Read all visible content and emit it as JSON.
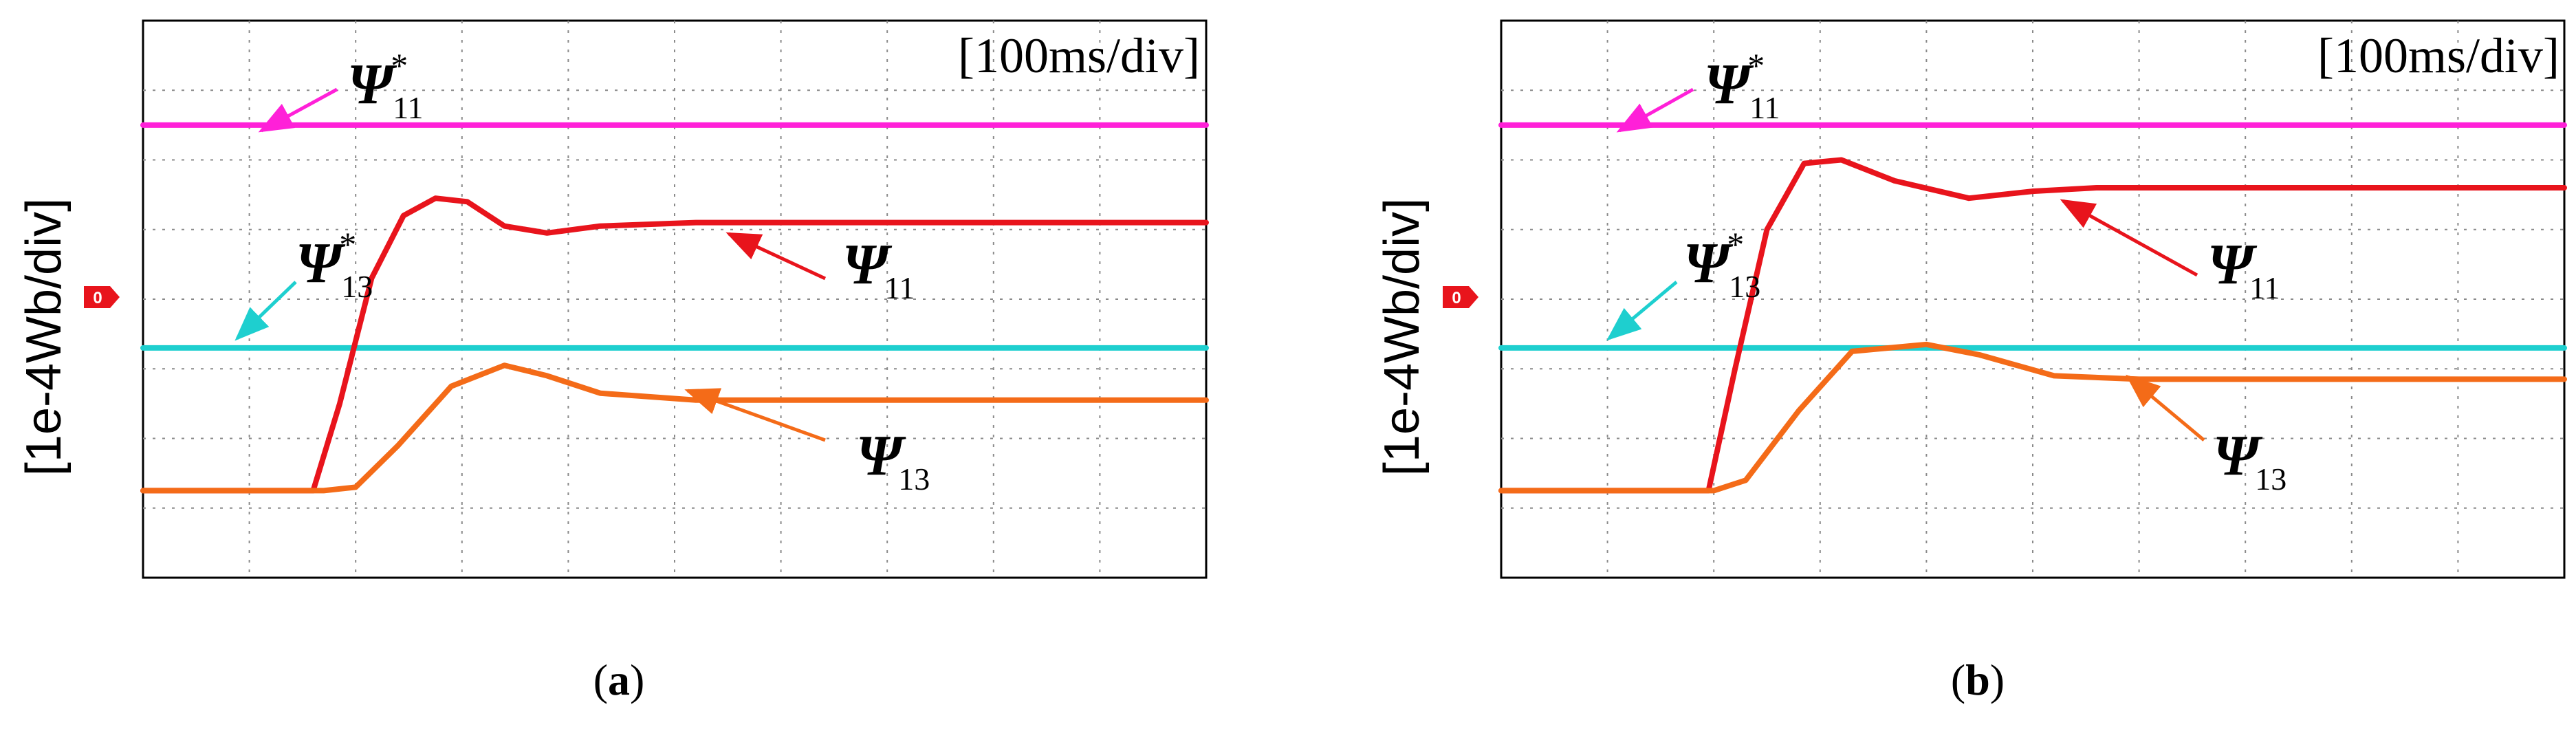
{
  "chart_data": [
    {
      "panel": "a",
      "type": "line",
      "caption": "a",
      "ylabel": "[1e-4Wb/div]",
      "timebase": "[100ms/div]",
      "zero_marker": "0",
      "xlim": [
        0,
        1000
      ],
      "ylim": [
        -4,
        4
      ],
      "grid": true,
      "series": [
        {
          "name": "psi11_ref",
          "label": {
            "sym": "Ψ",
            "sub": "11",
            "sup": "*"
          },
          "color": "#ff20d8",
          "points": [
            [
              0,
              2.5
            ],
            [
              1000,
              2.5
            ]
          ]
        },
        {
          "name": "psi13_ref",
          "label": {
            "sym": "Ψ",
            "sub": "13",
            "sup": "*"
          },
          "color": "#1ecfcf",
          "points": [
            [
              0,
              -0.7
            ],
            [
              1000,
              -0.7
            ]
          ]
        },
        {
          "name": "psi11",
          "label": {
            "sym": "Ψ",
            "sub": "11",
            "sup": ""
          },
          "color": "#e8141c",
          "points": [
            [
              0,
              -2.75
            ],
            [
              160,
              -2.75
            ],
            [
              185,
              -1.5
            ],
            [
              215,
              0.3
            ],
            [
              245,
              1.2
            ],
            [
              275,
              1.45
            ],
            [
              305,
              1.4
            ],
            [
              340,
              1.05
            ],
            [
              380,
              0.95
            ],
            [
              430,
              1.05
            ],
            [
              520,
              1.1
            ],
            [
              1000,
              1.1
            ]
          ]
        },
        {
          "name": "psi13",
          "label": {
            "sym": "Ψ",
            "sub": "13",
            "sup": ""
          },
          "color": "#f46b18",
          "points": [
            [
              0,
              -2.75
            ],
            [
              170,
              -2.75
            ],
            [
              200,
              -2.7
            ],
            [
              240,
              -2.1
            ],
            [
              290,
              -1.25
            ],
            [
              340,
              -0.95
            ],
            [
              380,
              -1.1
            ],
            [
              430,
              -1.35
            ],
            [
              520,
              -1.45
            ],
            [
              1000,
              -1.45
            ]
          ]
        }
      ]
    },
    {
      "panel": "b",
      "type": "line",
      "caption": "b",
      "ylabel": "[1e-4Wb/div]",
      "timebase": "[100ms/div]",
      "zero_marker": "0",
      "xlim": [
        0,
        1000
      ],
      "ylim": [
        -4,
        4
      ],
      "grid": true,
      "series": [
        {
          "name": "psi11_ref",
          "label": {
            "sym": "Ψ",
            "sub": "11",
            "sup": "*"
          },
          "color": "#ff20d8",
          "points": [
            [
              0,
              2.5
            ],
            [
              1000,
              2.5
            ]
          ]
        },
        {
          "name": "psi13_ref",
          "label": {
            "sym": "Ψ",
            "sub": "13",
            "sup": "*"
          },
          "color": "#1ecfcf",
          "points": [
            [
              0,
              -0.7
            ],
            [
              1000,
              -0.7
            ]
          ]
        },
        {
          "name": "psi11",
          "label": {
            "sym": "Ψ",
            "sub": "11",
            "sup": ""
          },
          "color": "#e8141c",
          "points": [
            [
              0,
              -2.75
            ],
            [
              195,
              -2.75
            ],
            [
              220,
              -1.0
            ],
            [
              250,
              1.0
            ],
            [
              285,
              1.95
            ],
            [
              320,
              2.0
            ],
            [
              370,
              1.7
            ],
            [
              440,
              1.45
            ],
            [
              500,
              1.55
            ],
            [
              560,
              1.6
            ],
            [
              1000,
              1.6
            ]
          ]
        },
        {
          "name": "psi13",
          "label": {
            "sym": "Ψ",
            "sub": "13",
            "sup": ""
          },
          "color": "#f46b18",
          "points": [
            [
              0,
              -2.75
            ],
            [
              200,
              -2.75
            ],
            [
              230,
              -2.6
            ],
            [
              280,
              -1.6
            ],
            [
              330,
              -0.75
            ],
            [
              400,
              -0.65
            ],
            [
              450,
              -0.8
            ],
            [
              520,
              -1.1
            ],
            [
              600,
              -1.15
            ],
            [
              1000,
              -1.15
            ]
          ]
        }
      ]
    }
  ]
}
